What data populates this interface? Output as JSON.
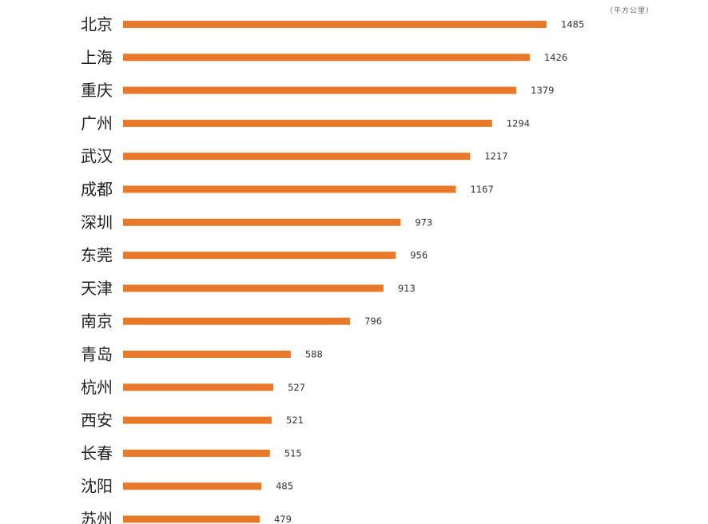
{
  "chart_data": {
    "type": "bar",
    "orientation": "horizontal",
    "unit_note": "（平方公里）",
    "categories": [
      "北京",
      "上海",
      "重庆",
      "广州",
      "武汉",
      "成都",
      "深圳",
      "东莞",
      "天津",
      "南京",
      "青岛",
      "杭州",
      "西安",
      "长春",
      "沈阳",
      "苏州"
    ],
    "values": [
      1485,
      1426,
      1379,
      1294,
      1217,
      1167,
      973,
      956,
      913,
      796,
      588,
      527,
      521,
      515,
      485,
      479
    ],
    "value_labels": [
      "1485",
      "1426",
      "1379",
      "1294",
      "1217",
      "1167",
      "973",
      "956",
      "913",
      "796",
      "588",
      "527",
      "521",
      "515",
      "485",
      "479"
    ],
    "bar_color": "#e8792a",
    "grid": false,
    "legend": "none"
  }
}
